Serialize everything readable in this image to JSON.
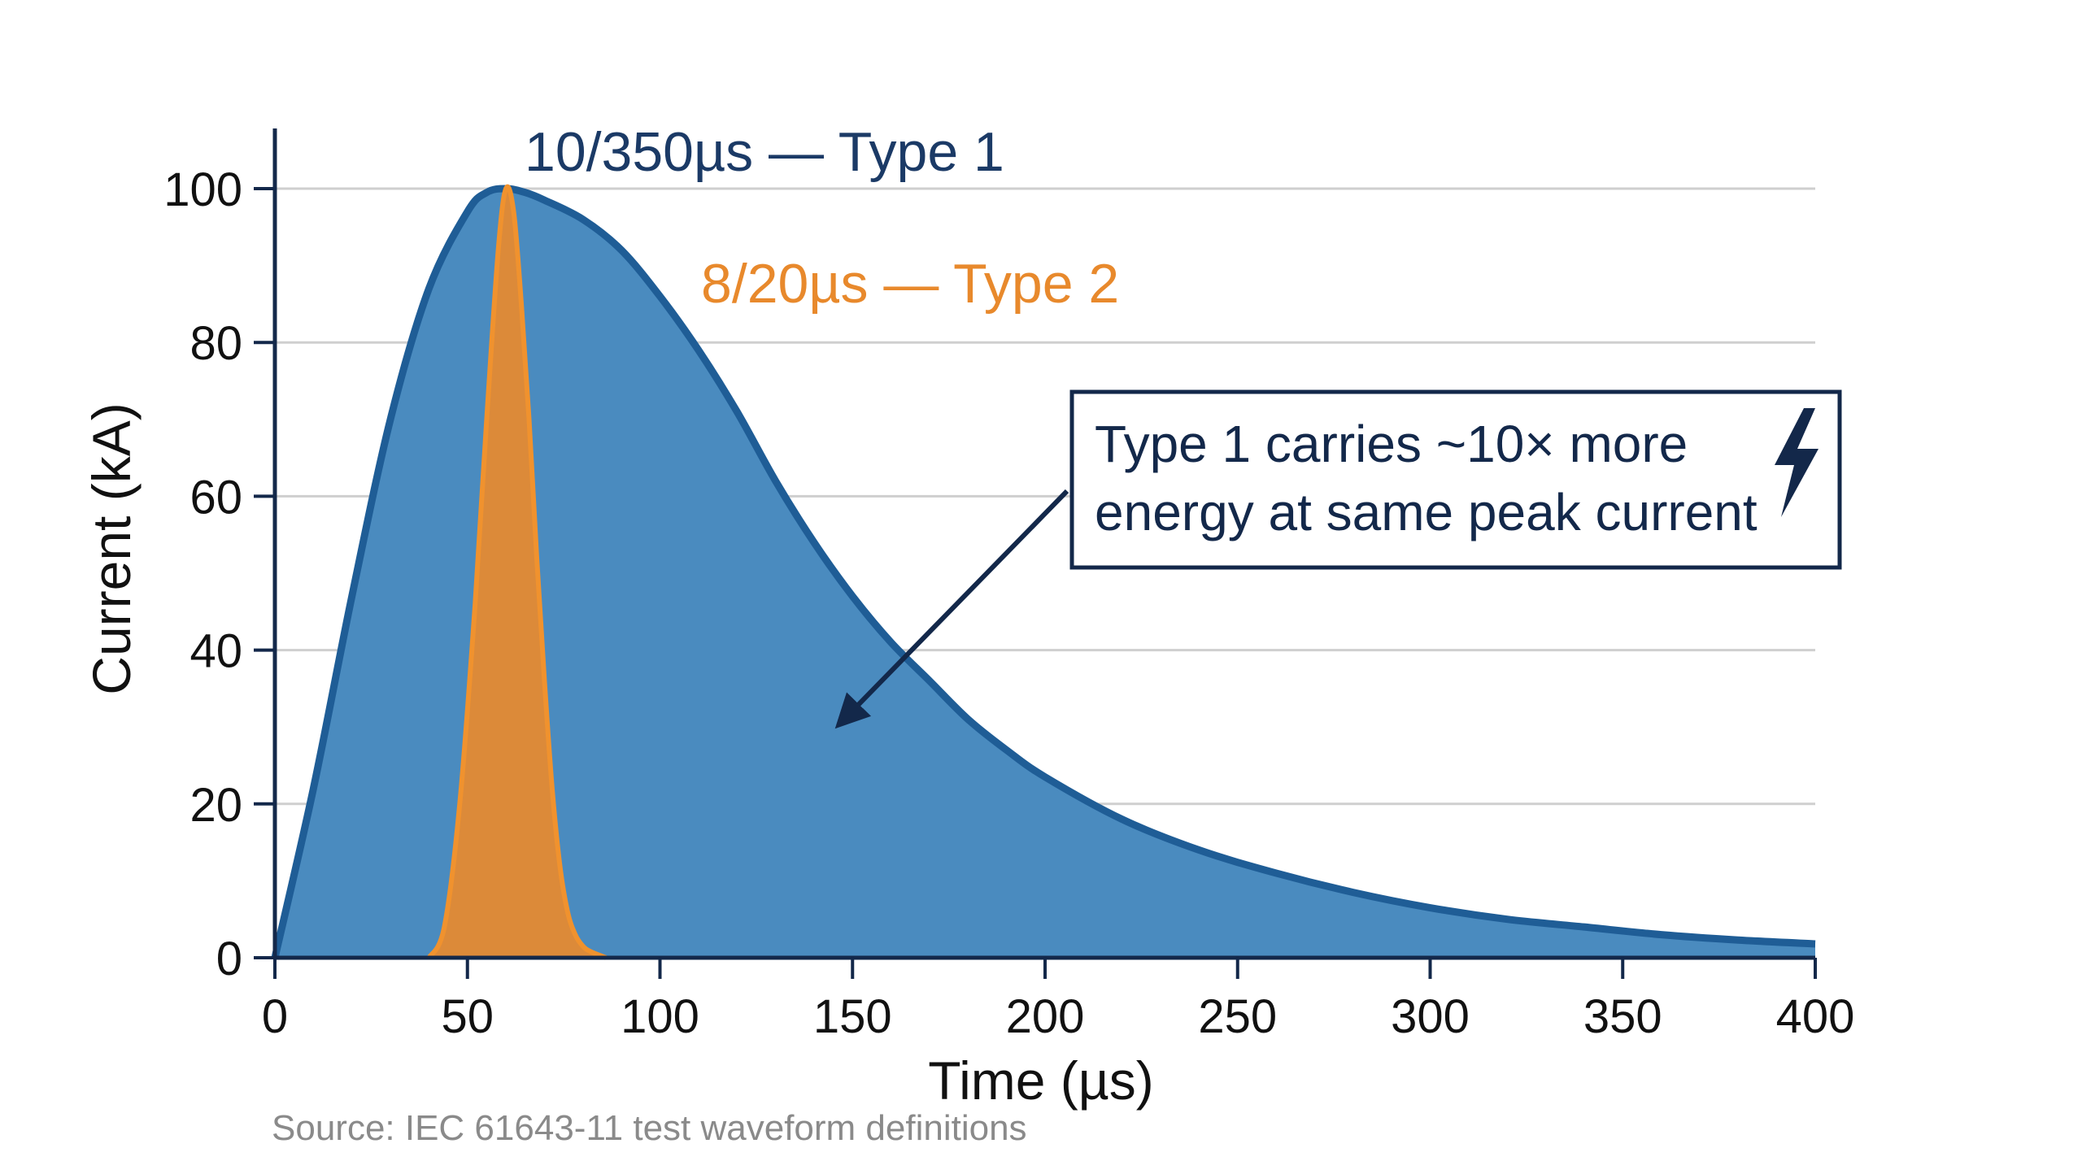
{
  "chart_data": {
    "type": "area",
    "xlabel": "Time (µs)",
    "ylabel": "Current (kA)",
    "xlim": [
      0,
      400
    ],
    "ylim": [
      0,
      100
    ],
    "x_ticks": [
      0,
      50,
      100,
      150,
      200,
      250,
      300,
      350,
      400
    ],
    "y_ticks": [
      0,
      20,
      40,
      60,
      80,
      100
    ],
    "grid": "horizontal",
    "series": [
      {
        "name": "10/350µs — Type 1",
        "color": "#4a8bbf",
        "line_color": "#1f5d96",
        "label_color": "#1b3a66",
        "x": [
          0,
          10,
          20,
          30,
          40,
          50,
          55,
          60,
          65,
          70,
          80,
          90,
          100,
          110,
          120,
          130,
          140,
          150,
          160,
          170,
          180,
          190,
          200,
          220,
          240,
          260,
          280,
          300,
          320,
          340,
          360,
          380,
          400
        ],
        "values": [
          0,
          22,
          47,
          70,
          87,
          97,
          99.5,
          100,
          99.5,
          98.5,
          96,
          92,
          86,
          79,
          71,
          62,
          54,
          47,
          41,
          36,
          31,
          27,
          23.5,
          18,
          14,
          11,
          8.5,
          6.5,
          5,
          4,
          3,
          2.3,
          1.8
        ]
      },
      {
        "name": "8/20µs — Type 2",
        "color": "#e48a32",
        "line_color": "#f0922e",
        "label_color": "#e8892c",
        "x": [
          40,
          44,
          48,
          52,
          55,
          58,
          60,
          62,
          64,
          66,
          68,
          70,
          72,
          74,
          76,
          78,
          80,
          82,
          86
        ],
        "values": [
          0,
          4,
          20,
          46,
          70,
          92,
          100,
          97,
          85,
          70,
          52,
          36,
          22,
          12,
          6,
          3,
          1.5,
          0.8,
          0
        ]
      }
    ],
    "annotation": {
      "text_lines": [
        "Type 1 carries ~10× more",
        "energy at same peak current"
      ],
      "icon": "lightning-bolt-icon",
      "arrow_target": [
        145,
        30
      ]
    }
  },
  "footer": {
    "source": "Source: IEC 61643-11 test waveform definitions"
  }
}
